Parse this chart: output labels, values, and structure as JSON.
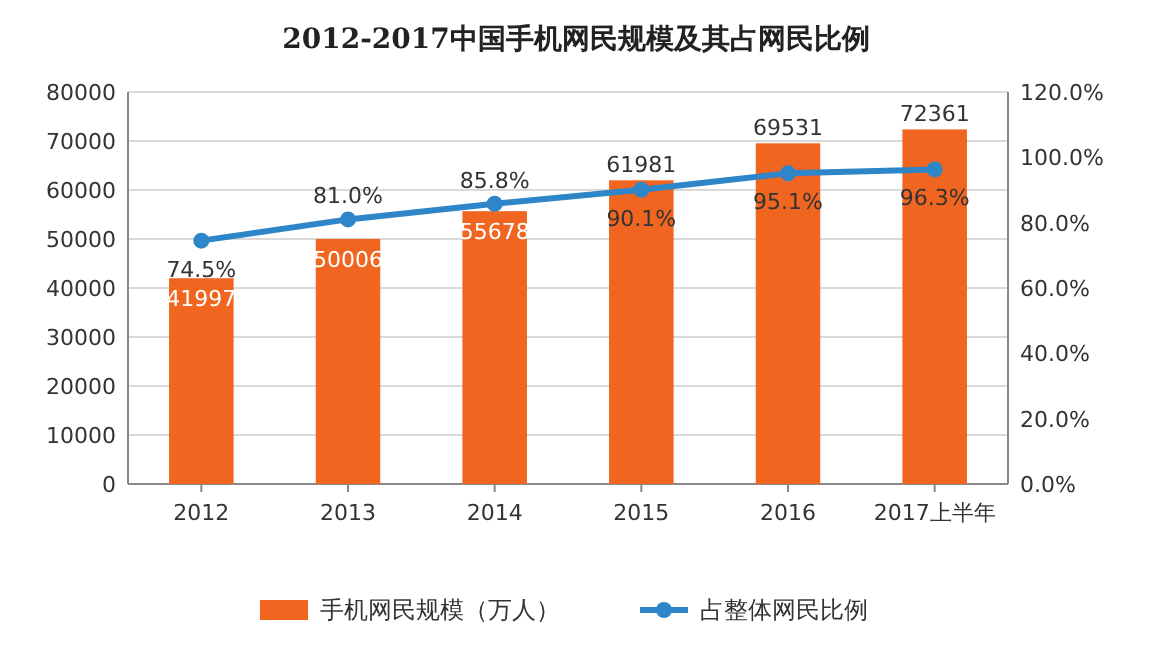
{
  "chart_data": {
    "type": "bar",
    "title": "2012-2017中国手机网民规模及其占网民比例",
    "categories": [
      "2012",
      "2013",
      "2014",
      "2015",
      "2016",
      "2017上半年"
    ],
    "series": [
      {
        "name": "手机网民规模（万人）",
        "color": "#f0651f",
        "values": [
          41997,
          50006,
          55678,
          61981,
          69531,
          72361
        ],
        "value_labels": [
          "41997",
          "50006",
          "55678",
          "61981",
          "69531",
          "72361"
        ]
      },
      {
        "name": "占整体网民比例",
        "type": "line",
        "axis": "y2",
        "color": "#2e86c8",
        "values": [
          74.5,
          81.0,
          85.8,
          90.1,
          95.1,
          96.3
        ],
        "value_labels": [
          "74.5%",
          "81.0%",
          "85.8%",
          "90.1%",
          "95.1%",
          "96.3%"
        ]
      }
    ],
    "ylim": [
      0,
      80000
    ],
    "yticks": [
      0,
      10000,
      20000,
      30000,
      40000,
      50000,
      60000,
      70000,
      80000
    ],
    "y2lim": [
      0,
      120
    ],
    "y2ticks": [
      {
        "value": 0,
        "label": "0.0%"
      },
      {
        "value": 20,
        "label": "20.0%"
      },
      {
        "value": 40,
        "label": "40.0%"
      },
      {
        "value": 60,
        "label": "60.0%"
      },
      {
        "value": 80,
        "label": "80.0%"
      },
      {
        "value": 100,
        "label": "100.0%"
      },
      {
        "value": 120,
        "label": "120.0%"
      }
    ],
    "grid": "y",
    "legend": "bottom",
    "marker": "circle",
    "line_style": "solid"
  }
}
